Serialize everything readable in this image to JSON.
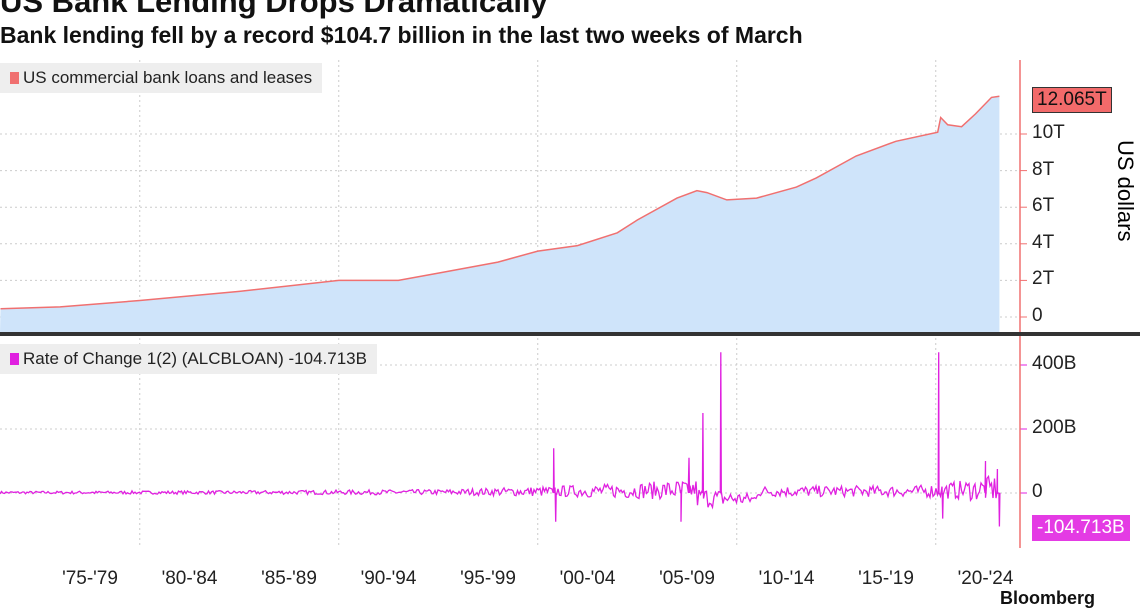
{
  "title": "US Bank Lending Drops Dramatically",
  "subtitle": "Bank lending fell by a record $104.7 billion in the last two weeks of March",
  "source": "Bloomberg",
  "chart_data": [
    {
      "type": "area",
      "title": "US commercial bank loans and leases",
      "legend": "US commercial bank loans and leases",
      "ylabel": "US dollars",
      "unit": "T",
      "color": "#f07070",
      "fill": "#cfe4fa",
      "ylim": [
        0,
        13
      ],
      "yticks": [
        0,
        2,
        4,
        6,
        8,
        10
      ],
      "ytick_labels": [
        "0",
        "2T",
        "4T",
        "6T",
        "8T",
        "10T"
      ],
      "last_value_label": "12.065T",
      "x": [
        1973,
        1976,
        1980,
        1985,
        1990,
        1993,
        1995,
        1998,
        2000,
        2002,
        2004,
        2005,
        2007,
        2008,
        2008.5,
        2009.5,
        2011,
        2013,
        2014,
        2016,
        2018,
        2020.1,
        2020.25,
        2020.6,
        2021.3,
        2022,
        2022.8,
        2023.2
      ],
      "y": [
        0.45,
        0.55,
        0.9,
        1.4,
        2.0,
        2.0,
        2.4,
        3.0,
        3.6,
        3.9,
        4.6,
        5.3,
        6.5,
        6.9,
        6.8,
        6.4,
        6.5,
        7.1,
        7.6,
        8.8,
        9.6,
        10.1,
        10.9,
        10.5,
        10.4,
        11.1,
        12.0,
        12.065
      ]
    },
    {
      "type": "line",
      "legend": "Rate of Change 1(2) (ALCBLOAN) -104.713B",
      "color": "#e020e0",
      "unit": "B",
      "ylim": [
        -150,
        470
      ],
      "yticks": [
        0,
        200,
        400
      ],
      "ytick_labels": [
        "0",
        "200B",
        "400B"
      ],
      "last_value_label": "-104.713B",
      "baseline_amplitude": [
        [
          1973,
          6
        ],
        [
          1985,
          8
        ],
        [
          1995,
          12
        ],
        [
          2000,
          22
        ],
        [
          2005,
          35
        ],
        [
          2008,
          50
        ],
        [
          2011,
          25
        ],
        [
          2019,
          25
        ],
        [
          2021,
          40
        ],
        [
          2023,
          60
        ]
      ],
      "spikes": [
        [
          2000.8,
          140
        ],
        [
          2000.9,
          -90
        ],
        [
          2007.2,
          -90
        ],
        [
          2007.6,
          110
        ],
        [
          2008.3,
          250
        ],
        [
          2009.2,
          440
        ],
        [
          2020.15,
          440
        ],
        [
          2020.35,
          -80
        ],
        [
          2022.5,
          100
        ],
        [
          2023.1,
          75
        ],
        [
          2023.2,
          -104.713
        ]
      ]
    },
    {
      "x_tick_labels": [
        "'75-'79",
        "'80-'84",
        "'85-'89",
        "'90-'94",
        "'95-'99",
        "'00-'04",
        "'05-'09",
        "'10-'14",
        "'15-'19",
        "'20-'24"
      ]
    }
  ]
}
